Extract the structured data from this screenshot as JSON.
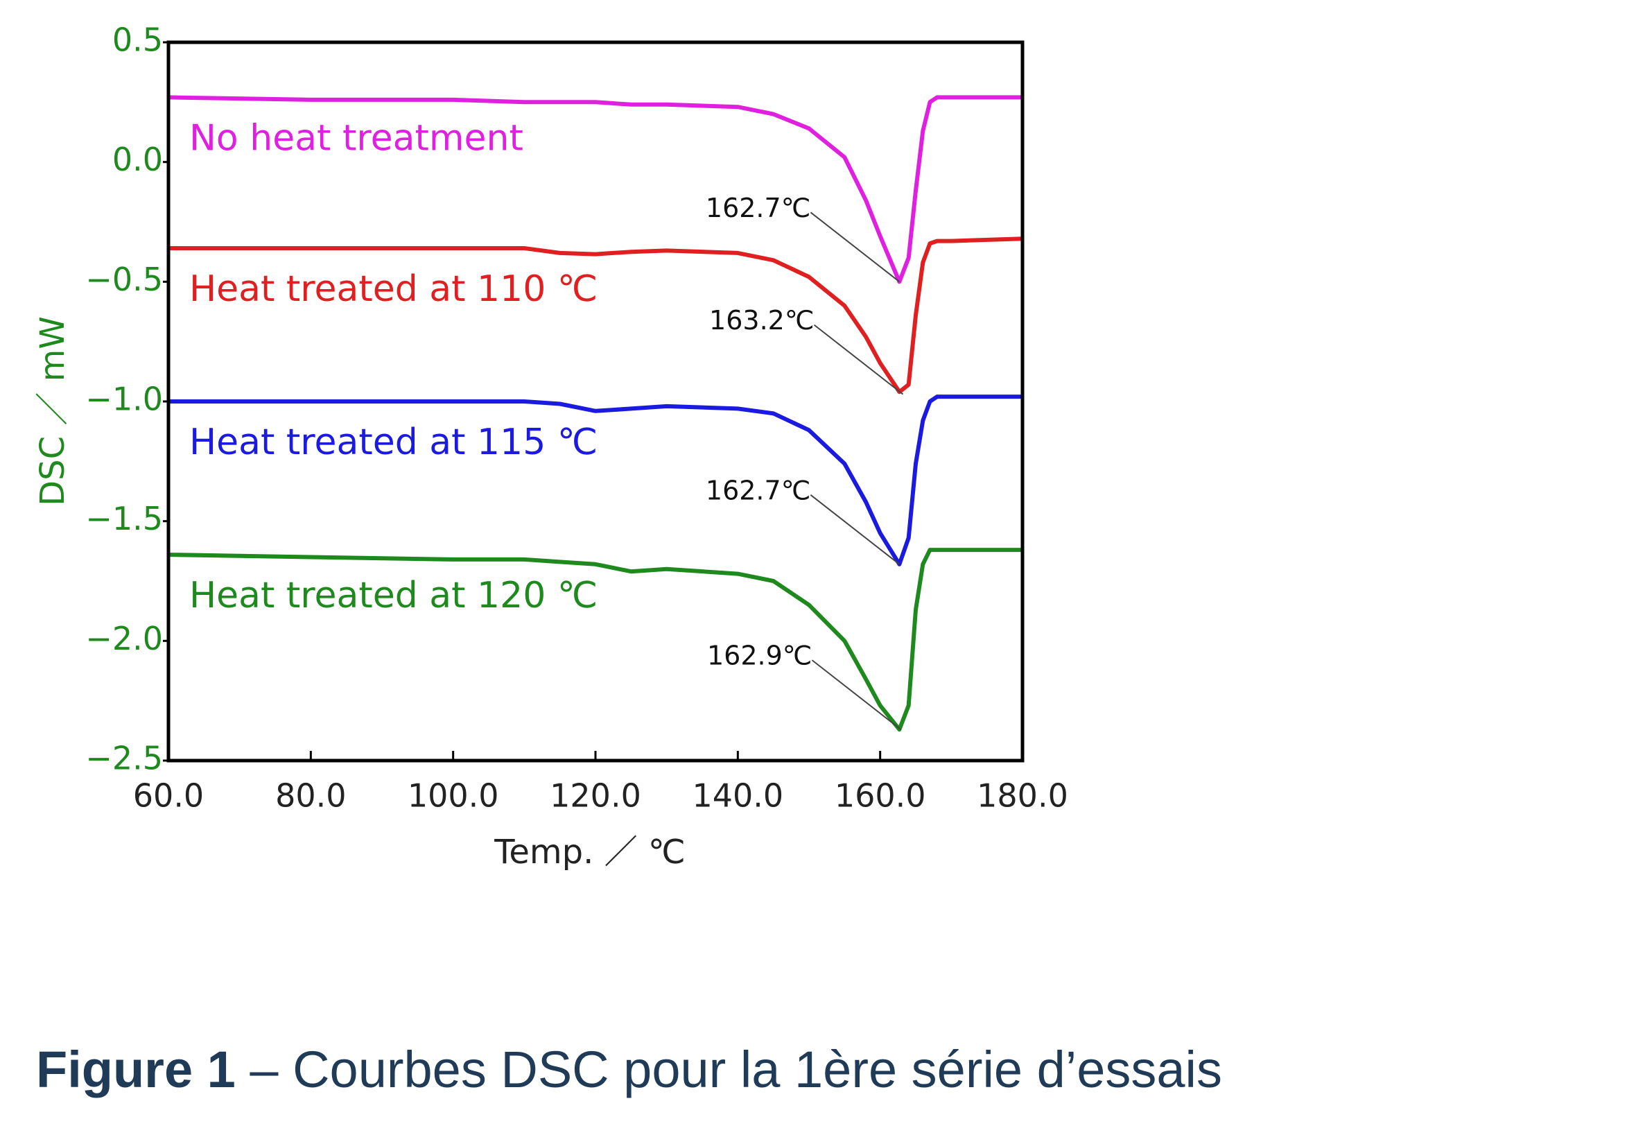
{
  "chart_data": {
    "type": "line",
    "x_label": "Temp. ／ ℃",
    "y_label": "DSC ／ mW",
    "xlim": [
      60,
      180
    ],
    "ylim": [
      -2.5,
      0.5
    ],
    "xticks": [
      {
        "value": 60,
        "label": "60.0"
      },
      {
        "value": 80,
        "label": "80.0"
      },
      {
        "value": 100,
        "label": "100.0"
      },
      {
        "value": 120,
        "label": "120.0"
      },
      {
        "value": 140,
        "label": "140.0"
      },
      {
        "value": 160,
        "label": "160.0"
      },
      {
        "value": 180,
        "label": "180.0"
      }
    ],
    "yticks": [
      0.5,
      {
        "value": 0,
        "label": "0.0"
      },
      {
        "value": -0.5,
        "label": "−0.5"
      },
      {
        "value": -1,
        "label": "−1.0"
      },
      {
        "value": -1.5,
        "label": "−1.5"
      },
      {
        "value": -2,
        "label": "−2.0"
      },
      {
        "value": -2.5,
        "label": "−2.5"
      }
    ],
    "axis_color": "#1e8a1e",
    "x": [
      60,
      80,
      100,
      110,
      115,
      120,
      125,
      130,
      140,
      145,
      150,
      155,
      158,
      160,
      162.7,
      164,
      165,
      166,
      167,
      168,
      170,
      180
    ],
    "series": [
      {
        "name": "No heat treatment",
        "color": "#e020e0",
        "values": [
          0.27,
          0.26,
          0.26,
          0.25,
          0.25,
          0.25,
          0.24,
          0.24,
          0.23,
          0.2,
          0.14,
          0.02,
          -0.16,
          -0.31,
          -0.5,
          -0.4,
          -0.12,
          0.13,
          0.25,
          0.27,
          0.27,
          0.27
        ]
      },
      {
        "name": "Heat treated at 110 ℃",
        "color": "#e02020",
        "values": [
          -0.36,
          -0.36,
          -0.36,
          -0.36,
          -0.38,
          -0.385,
          -0.375,
          -0.37,
          -0.38,
          -0.41,
          -0.48,
          -0.6,
          -0.73,
          -0.84,
          -0.96,
          -0.93,
          -0.64,
          -0.42,
          -0.34,
          -0.33,
          -0.33,
          -0.32
        ]
      },
      {
        "name": "Heat treated at 115 ℃",
        "color": "#1a1ae0",
        "values": [
          -1.0,
          -1.0,
          -1.0,
          -1.0,
          -1.01,
          -1.04,
          -1.03,
          -1.02,
          -1.03,
          -1.05,
          -1.12,
          -1.26,
          -1.42,
          -1.55,
          -1.68,
          -1.57,
          -1.26,
          -1.08,
          -1.0,
          -0.98,
          -0.98,
          -0.98
        ]
      },
      {
        "name": "Heat treated at 120 ℃",
        "color": "#1e8a1e",
        "values": [
          -1.64,
          -1.65,
          -1.66,
          -1.66,
          -1.67,
          -1.68,
          -1.71,
          -1.7,
          -1.72,
          -1.75,
          -1.85,
          -2.0,
          -2.16,
          -2.27,
          -2.37,
          -2.27,
          -1.87,
          -1.68,
          -1.62,
          -1.62,
          -1.62,
          -1.62
        ]
      }
    ],
    "annotations": [
      {
        "text": "162.7℃",
        "x": 162.7,
        "y": -0.5
      },
      {
        "text": "163.2℃",
        "x": 163.2,
        "y": -0.97
      },
      {
        "text": "162.7℃",
        "x": 162.7,
        "y": -1.68
      },
      {
        "text": "162.9℃",
        "x": 162.9,
        "y": -2.37
      }
    ]
  },
  "caption": {
    "label": "Figure 1",
    "text": "– Courbes DSC pour la 1ère série d’essais"
  }
}
